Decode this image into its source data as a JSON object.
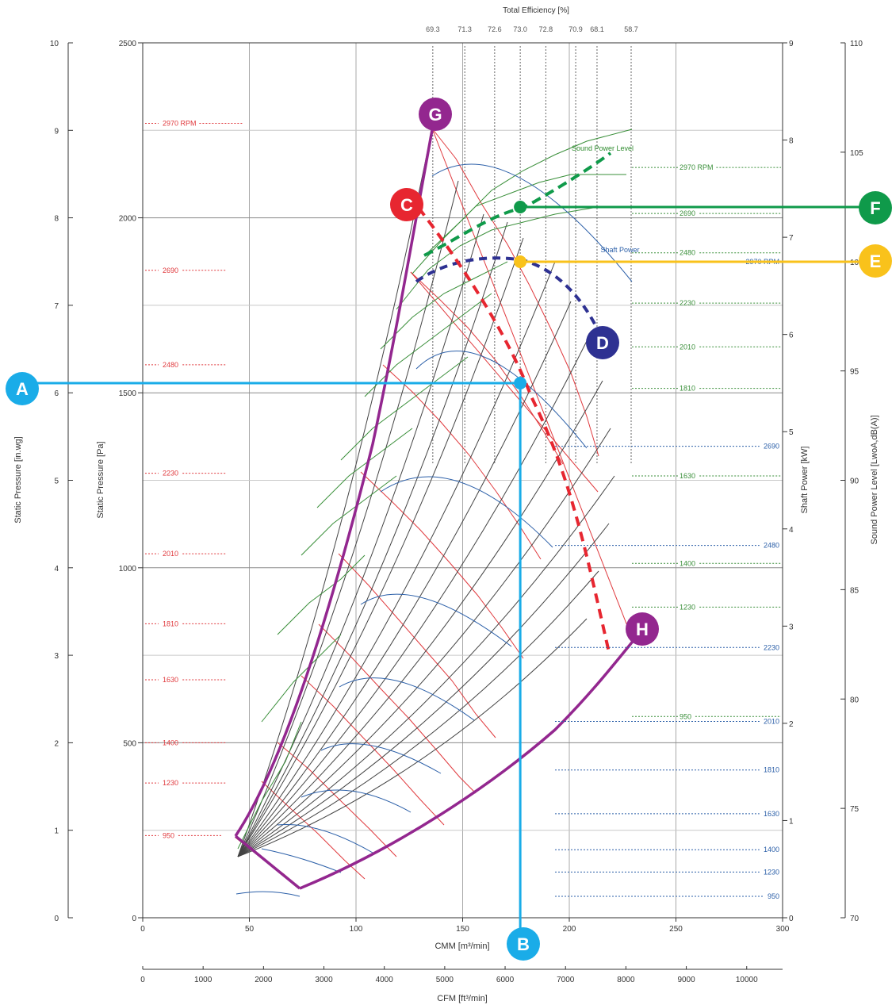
{
  "chart_data": {
    "type": "line",
    "title": "Total Efficiency [%]",
    "efficiency_labels": [
      "69.3",
      "71.3",
      "72.6",
      "73.0",
      "72.8",
      "70.9",
      "68.1",
      "58.7"
    ],
    "efficiency_positions_cmm": [
      136,
      151,
      165,
      177,
      189,
      203,
      213,
      229
    ],
    "x_axis": {
      "label": "CMM [m³/min]",
      "range": [
        0,
        300
      ],
      "ticks": [
        "0",
        "50",
        "100",
        "150",
        "200",
        "250",
        "300"
      ]
    },
    "x2_axis": {
      "label": "CFM [ft³/min]",
      "range": [
        0,
        10594
      ],
      "ticks": [
        "0",
        "1000",
        "2000",
        "3000",
        "4000",
        "5000",
        "6000",
        "7000",
        "8000",
        "9000",
        "10000"
      ]
    },
    "y_left_pa": {
      "label": "Static Pressure [Pa]",
      "range": [
        0,
        2500
      ],
      "ticks": [
        "0",
        "500",
        "1000",
        "1500",
        "2000",
        "2500"
      ]
    },
    "y_left_inwg": {
      "label": "Static Pressure [in.wg]",
      "range": [
        0,
        10
      ],
      "ticks": [
        "0",
        "1",
        "2",
        "3",
        "4",
        "5",
        "6",
        "7",
        "8",
        "9",
        "10"
      ]
    },
    "y_right_kw": {
      "label": "Shaft Power [kW]",
      "range": [
        0,
        9
      ],
      "ticks": [
        "0",
        "1",
        "2",
        "3",
        "4",
        "5",
        "6",
        "7",
        "8",
        "9"
      ]
    },
    "y_right_db": {
      "label": "Sound Power Level [LwoA,dB(A)]",
      "range": [
        70,
        110
      ],
      "ticks": [
        "70",
        "75",
        "80",
        "85",
        "90",
        "95",
        "100",
        "105",
        "110"
      ]
    },
    "rpm_pressure_labels": [
      "2970 RPM",
      "2690",
      "2480",
      "2230",
      "2010",
      "1810",
      "1630",
      "1400",
      "1230",
      "950"
    ],
    "rpm_pressure_pa": [
      2270,
      1850,
      1580,
      1270,
      1040,
      840,
      680,
      500,
      385,
      235
    ],
    "rpm_sound_labels": [
      "2970 RPM",
      "2690",
      "2480",
      "2230",
      "2010",
      "1810",
      "1630",
      "1400",
      "1230",
      "950"
    ],
    "rpm_sound_db": [
      104.3,
      102.2,
      100.4,
      98.1,
      96.1,
      94.2,
      90.2,
      86.2,
      84.2,
      79.2
    ],
    "rpm_power_labels": [
      "2970 RPM",
      "2690",
      "2480",
      "2230",
      "2010",
      "1810",
      "1630",
      "1400",
      "1230",
      "950"
    ],
    "rpm_power_kw": [
      6.75,
      4.85,
      3.83,
      2.78,
      2.02,
      1.52,
      1.07,
      0.7,
      0.47,
      0.22
    ],
    "annotations": {
      "sound_power": "Sound Power Level",
      "shaft_power": "Shaft Power"
    },
    "markers": [
      "A",
      "B",
      "C",
      "D",
      "E",
      "F",
      "G",
      "H"
    ],
    "marker_colors": {
      "A": "#1aace8",
      "B": "#1aace8",
      "C": "#e72630",
      "D": "#2e3192",
      "E": "#f9c21b",
      "F": "#0f9a4a",
      "G": "#93278f",
      "H": "#93278f"
    },
    "operating_point": {
      "cmm": 177,
      "pa": 1530,
      "kw": 6.65,
      "db": 100.8
    }
  }
}
